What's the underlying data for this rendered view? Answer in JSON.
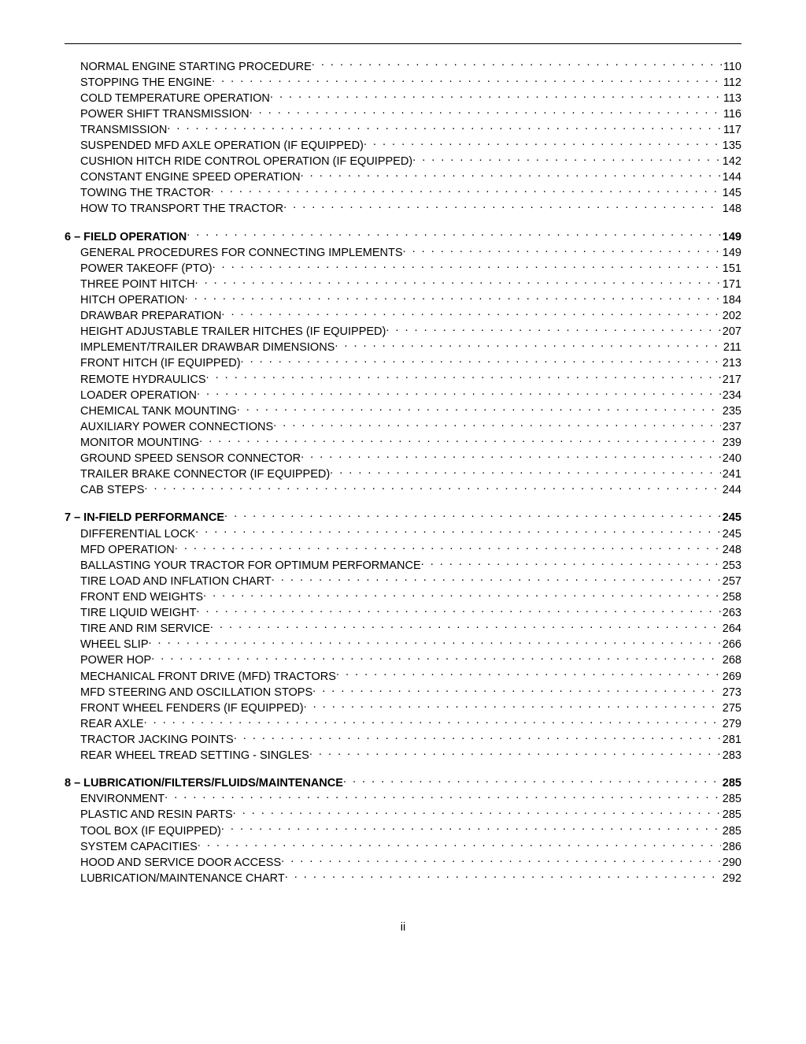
{
  "page_footer": "ii",
  "sections": [
    {
      "header": null,
      "items": [
        {
          "label": "NORMAL ENGINE STARTING PROCEDURE",
          "page": "110"
        },
        {
          "label": "STOPPING THE ENGINE",
          "page": "112"
        },
        {
          "label": "COLD TEMPERATURE OPERATION",
          "page": "113"
        },
        {
          "label": "POWER SHIFT TRANSMISSION",
          "page": "116"
        },
        {
          "label": "TRANSMISSION",
          "page": "117"
        },
        {
          "label": "SUSPENDED MFD AXLE OPERATION (IF EQUIPPED)",
          "page": "135"
        },
        {
          "label": "CUSHION HITCH RIDE CONTROL OPERATION (IF EQUIPPED)",
          "page": "142"
        },
        {
          "label": "CONSTANT ENGINE SPEED OPERATION",
          "page": "144"
        },
        {
          "label": "TOWING THE TRACTOR",
          "page": "145"
        },
        {
          "label": "HOW TO TRANSPORT THE TRACTOR",
          "page": "148"
        }
      ]
    },
    {
      "header": {
        "label": "6 – FIELD OPERATION",
        "page": "149"
      },
      "items": [
        {
          "label": "GENERAL PROCEDURES FOR CONNECTING IMPLEMENTS",
          "page": "149"
        },
        {
          "label": "POWER TAKEOFF (PTO)",
          "page": "151"
        },
        {
          "label": "THREE POINT HITCH",
          "page": "171"
        },
        {
          "label": "HITCH OPERATION",
          "page": "184"
        },
        {
          "label": "DRAWBAR PREPARATION",
          "page": "202"
        },
        {
          "label": "HEIGHT ADJUSTABLE TRAILER HITCHES (IF EQUIPPED)",
          "page": "207"
        },
        {
          "label": "IMPLEMENT/TRAILER DRAWBAR DIMENSIONS",
          "page": "211"
        },
        {
          "label": "FRONT HITCH (IF EQUIPPED)",
          "page": "213"
        },
        {
          "label": "REMOTE HYDRAULICS",
          "page": "217"
        },
        {
          "label": "LOADER OPERATION",
          "page": "234"
        },
        {
          "label": "CHEMICAL TANK MOUNTING",
          "page": "235"
        },
        {
          "label": "AUXILIARY POWER CONNECTIONS",
          "page": "237"
        },
        {
          "label": "MONITOR MOUNTING",
          "page": "239"
        },
        {
          "label": "GROUND SPEED SENSOR CONNECTOR",
          "page": "240"
        },
        {
          "label": "TRAILER BRAKE CONNECTOR (IF EQUIPPED)",
          "page": "241"
        },
        {
          "label": "CAB STEPS",
          "page": "244"
        }
      ]
    },
    {
      "header": {
        "label": "7 – IN-FIELD PERFORMANCE",
        "page": "245"
      },
      "items": [
        {
          "label": "DIFFERENTIAL LOCK",
          "page": "245"
        },
        {
          "label": "MFD OPERATION",
          "page": "248"
        },
        {
          "label": "BALLASTING YOUR TRACTOR FOR OPTIMUM PERFORMANCE",
          "page": "253"
        },
        {
          "label": "TIRE LOAD AND INFLATION CHART",
          "page": "257"
        },
        {
          "label": "FRONT END WEIGHTS",
          "page": "258"
        },
        {
          "label": "TIRE LIQUID WEIGHT",
          "page": "263"
        },
        {
          "label": "TIRE AND RIM SERVICE",
          "page": "264"
        },
        {
          "label": "WHEEL SLIP",
          "page": "266"
        },
        {
          "label": "POWER HOP",
          "page": "268"
        },
        {
          "label": "MECHANICAL FRONT DRIVE (MFD) TRACTORS",
          "page": "269"
        },
        {
          "label": "MFD STEERING AND OSCILLATION STOPS",
          "page": "273"
        },
        {
          "label": "FRONT WHEEL FENDERS (IF EQUIPPED)",
          "page": "275"
        },
        {
          "label": "REAR AXLE",
          "page": "279"
        },
        {
          "label": "TRACTOR JACKING POINTS",
          "page": "281"
        },
        {
          "label": "REAR WHEEL TREAD SETTING - SINGLES",
          "page": "283"
        }
      ]
    },
    {
      "header": {
        "label": "8 – LUBRICATION/FILTERS/FLUIDS/MAINTENANCE",
        "page": "285"
      },
      "items": [
        {
          "label": "ENVIRONMENT",
          "page": "285"
        },
        {
          "label": "PLASTIC AND RESIN PARTS",
          "page": "285"
        },
        {
          "label": "TOOL BOX (IF EQUIPPED)",
          "page": "285"
        },
        {
          "label": "SYSTEM CAPACITIES",
          "page": "286"
        },
        {
          "label": "HOOD AND SERVICE DOOR ACCESS",
          "page": "290"
        },
        {
          "label": "LUBRICATION/MAINTENANCE CHART",
          "page": "292"
        }
      ]
    }
  ],
  "dots": ". . . . . . . . . . . . . . . . . . . . . . . . . . . . . . . . . . . . . . . . . . . . . . . . . . . . . . . . . . . . . . . . . . . . . . . . . . . . . . . . . . . . . . . . . . . . . . . . . . . . . . . . . . . . . . . . . . . . . . . . . . . . . . . . . . . . . . . . . . . . . . . . . . . . . . . . . . . . . . . . . . . . . . . . . . . ."
}
